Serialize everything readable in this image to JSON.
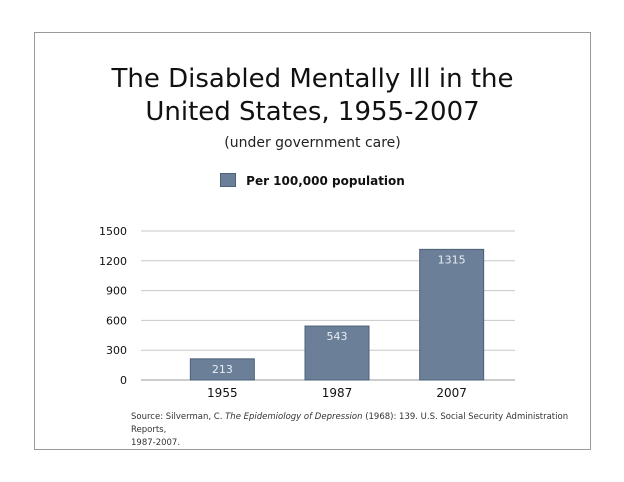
{
  "title_line1": "The Disabled Mentally Ill in the",
  "title_line2": "United States, 1955-2007",
  "subtitle": "(under government care)",
  "source": {
    "prefix": "Source: Silverman, C. ",
    "book": "The Epidemiology of Depression",
    "suffix_line1": " (1968): 139. U.S. Social Security Administration Reports,",
    "suffix_line2": "1987-2007."
  },
  "colors": {
    "bar": "#6b7f99",
    "bar_edge": "#4e6077",
    "grid": "#c8c8c8"
  },
  "chart_data": {
    "type": "bar",
    "categories": [
      "1955",
      "1987",
      "2007"
    ],
    "series": [
      {
        "name": "Per 100,000 population",
        "values": [
          213,
          543,
          1315
        ]
      }
    ],
    "data_labels": [
      "213",
      "543",
      "1315"
    ],
    "y_ticks": [
      "0",
      "300",
      "600",
      "900",
      "1200",
      "1500"
    ],
    "ylim": [
      0,
      1500
    ],
    "grid": true,
    "legend_position": "top"
  }
}
